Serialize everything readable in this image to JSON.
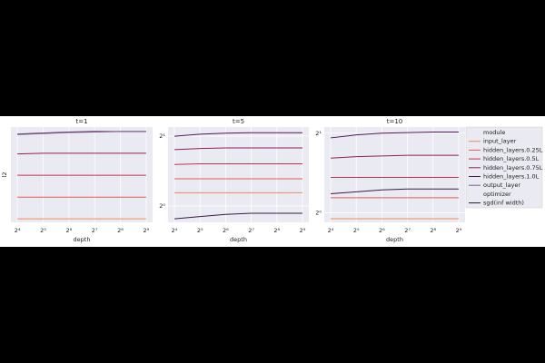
{
  "legend": {
    "title": "module",
    "style_title": "optimizer",
    "style_label": "sgd(inf width)",
    "style_color": "#2a1b2e"
  },
  "chart_data": [
    {
      "type": "line",
      "title": "t=1",
      "xlabel": "depth",
      "ylabel": "l2",
      "xscale": "log2",
      "yscale": "log2",
      "grid": true,
      "x": [
        16,
        32,
        64,
        128,
        256,
        512
      ],
      "xlim": [
        13.45,
        608.9
      ],
      "xticks": [
        {
          "value": 16,
          "label": "2⁴"
        },
        {
          "value": 32,
          "label": "2⁵"
        },
        {
          "value": 64,
          "label": "2⁶"
        },
        {
          "value": 128,
          "label": "2⁷"
        },
        {
          "value": 256,
          "label": "2⁸"
        },
        {
          "value": 512,
          "label": "2⁹"
        }
      ],
      "ylim": [
        0.9,
        2.2
      ],
      "series": [
        {
          "name": "input_layer",
          "color": "#f08a5d",
          "values": [
            0.93,
            0.93,
            0.93,
            0.93,
            0.93,
            0.93
          ]
        },
        {
          "name": "hidden_layers.0.25L",
          "color": "#e55c4e",
          "values": [
            1.14,
            1.14,
            1.14,
            1.14,
            1.14,
            1.14
          ]
        },
        {
          "name": "hidden_layers.0.5L",
          "color": "#c2324f",
          "values": [
            1.4,
            1.4,
            1.4,
            1.4,
            1.4,
            1.4
          ]
        },
        {
          "name": "hidden_layers.0.75L",
          "color": "#8e1f5a",
          "values": [
            1.71,
            1.72,
            1.72,
            1.72,
            1.72,
            1.72
          ]
        },
        {
          "name": "hidden_layers.1.0L",
          "color": "#4f1656",
          "values": [
            2.06,
            2.08,
            2.1,
            2.11,
            2.11,
            2.11
          ]
        },
        {
          "name": "output_layer",
          "color": "#7b5d86",
          "values": [
            2.05,
            2.07,
            2.09,
            2.1,
            2.11,
            2.11
          ]
        }
      ]
    },
    {
      "type": "line",
      "title": "t=5",
      "xlabel": "depth",
      "xscale": "log2",
      "yscale": "log2",
      "grid": true,
      "x": [
        16,
        32,
        64,
        128,
        256,
        512
      ],
      "xlim": [
        13.45,
        608.9
      ],
      "xticks": [
        {
          "value": 16,
          "label": "2⁴"
        },
        {
          "value": 32,
          "label": "2⁵"
        },
        {
          "value": 64,
          "label": "2⁶"
        },
        {
          "value": 128,
          "label": "2⁷"
        },
        {
          "value": 256,
          "label": "2⁸"
        },
        {
          "value": 512,
          "label": "2⁹"
        }
      ],
      "ylim": [
        0.85,
        2.19
      ],
      "yticks": [
        {
          "value": 1,
          "label": "2⁰"
        },
        {
          "value": 2,
          "label": "2¹"
        }
      ],
      "series": [
        {
          "name": "input_layer",
          "color": "#f08a5d",
          "values": [
            1.14,
            1.14,
            1.14,
            1.14,
            1.14,
            1.14
          ]
        },
        {
          "name": "hidden_layers.0.25L",
          "color": "#e55c4e",
          "values": [
            1.31,
            1.31,
            1.31,
            1.31,
            1.31,
            1.31
          ]
        },
        {
          "name": "hidden_layers.0.5L",
          "color": "#c2324f",
          "values": [
            1.51,
            1.52,
            1.52,
            1.52,
            1.52,
            1.52
          ]
        },
        {
          "name": "hidden_layers.0.75L",
          "color": "#8e1f5a",
          "values": [
            1.75,
            1.77,
            1.78,
            1.78,
            1.78,
            1.78
          ]
        },
        {
          "name": "hidden_layers.1.0L",
          "color": "#4f1656",
          "values": [
            2.0,
            2.04,
            2.06,
            2.07,
            2.07,
            2.07
          ]
        },
        {
          "name": "output_layer",
          "color": "#3a1a4a",
          "values": [
            0.88,
            0.9,
            0.92,
            0.93,
            0.93,
            0.93
          ]
        }
      ]
    },
    {
      "type": "line",
      "title": "t=10",
      "xlabel": "depth",
      "xscale": "log2",
      "yscale": "log2",
      "grid": true,
      "x": [
        16,
        32,
        64,
        128,
        256,
        512
      ],
      "xlim": [
        13.45,
        608.9
      ],
      "xticks": [
        {
          "value": 16,
          "label": "2⁴"
        },
        {
          "value": 32,
          "label": "2⁵"
        },
        {
          "value": 64,
          "label": "2⁶"
        },
        {
          "value": 128,
          "label": "2⁷"
        },
        {
          "value": 256,
          "label": "2⁸"
        },
        {
          "value": 512,
          "label": "2⁹"
        }
      ],
      "ylim": [
        0.92,
        2.11
      ],
      "yticks": [
        {
          "value": 1,
          "label": "2⁰"
        },
        {
          "value": 2,
          "label": "2¹"
        }
      ],
      "series": [
        {
          "name": "input_layer",
          "color": "#f08a5d",
          "values": [
            0.95,
            0.95,
            0.95,
            0.95,
            0.95,
            0.95
          ]
        },
        {
          "name": "hidden_layers.0.25L",
          "color": "#e55c4e",
          "values": [
            1.14,
            1.14,
            1.14,
            1.14,
            1.14,
            1.14
          ]
        },
        {
          "name": "hidden_layers.0.5L",
          "color": "#c2324f",
          "values": [
            1.36,
            1.36,
            1.36,
            1.36,
            1.36,
            1.36
          ]
        },
        {
          "name": "hidden_layers.0.75L",
          "color": "#8e1f5a",
          "values": [
            1.61,
            1.63,
            1.64,
            1.65,
            1.65,
            1.65
          ]
        },
        {
          "name": "hidden_layers.1.0L",
          "color": "#4f1656",
          "values": [
            1.92,
            1.97,
            2.0,
            2.01,
            2.02,
            2.02
          ]
        },
        {
          "name": "output_layer",
          "color": "#3a1a4a",
          "values": [
            1.18,
            1.2,
            1.22,
            1.23,
            1.23,
            1.23
          ]
        }
      ]
    }
  ]
}
